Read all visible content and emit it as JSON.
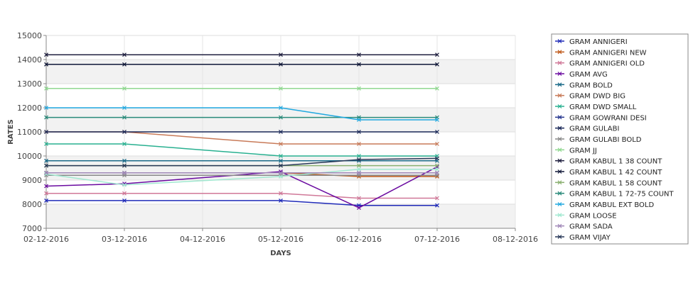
{
  "chart_data": {
    "type": "line",
    "xlabel": "DAYS",
    "ylabel": "RATES",
    "x_ticks": [
      "02-12-2016",
      "03-12-2016",
      "04-12-2016",
      "05-12-2016",
      "06-12-2016",
      "07-12-2016",
      "08-12-2016"
    ],
    "y_ticks": [
      7000,
      8000,
      9000,
      10000,
      11000,
      12000,
      13000,
      14000,
      15000
    ],
    "ylim": [
      7000,
      15000
    ],
    "grid": true,
    "legend_position": "right",
    "series": [
      {
        "name": "GRAM ANNIGERI",
        "color": "#1f2ab8",
        "x": [
          "02-12-2016",
          "03-12-2016",
          "05-12-2016",
          "06-12-2016",
          "07-12-2016"
        ],
        "values": [
          8150,
          8150,
          8150,
          7950,
          7950
        ]
      },
      {
        "name": "GRAM ANNIGERI NEW",
        "color": "#c05a1a",
        "x": [
          "02-12-2016",
          "03-12-2016",
          "05-12-2016",
          "06-12-2016",
          "07-12-2016"
        ],
        "values": [
          9300,
          9300,
          9300,
          9150,
          9150
        ]
      },
      {
        "name": "GRAM ANNIGERI OLD",
        "color": "#d07898",
        "x": [
          "02-12-2016",
          "03-12-2016",
          "05-12-2016",
          "06-12-2016",
          "07-12-2016"
        ],
        "values": [
          8450,
          8450,
          8450,
          8250,
          8250
        ]
      },
      {
        "name": "GRAM AVG",
        "color": "#6a0aa0",
        "x": [
          "02-12-2016",
          "03-12-2016",
          "05-12-2016",
          "06-12-2016",
          "07-12-2016"
        ],
        "values": [
          8750,
          8850,
          9350,
          7850,
          9550
        ]
      },
      {
        "name": "GRAM BOLD",
        "color": "#1a6a88",
        "x": [
          "02-12-2016",
          "03-12-2016",
          "05-12-2016",
          "06-12-2016",
          "07-12-2016"
        ],
        "values": [
          9800,
          9800,
          9800,
          9800,
          9800
        ]
      },
      {
        "name": "GRAM DWD BIG",
        "color": "#c87a58",
        "x": [
          "02-12-2016",
          "03-12-2016",
          "05-12-2016",
          "06-12-2016",
          "07-12-2016"
        ],
        "values": [
          11000,
          11000,
          10500,
          10500,
          10500
        ]
      },
      {
        "name": "GRAM DWD SMALL",
        "color": "#28b090",
        "x": [
          "02-12-2016",
          "03-12-2016",
          "05-12-2016",
          "06-12-2016",
          "07-12-2016"
        ],
        "values": [
          10500,
          10500,
          10000,
          10000,
          10000
        ]
      },
      {
        "name": "GRAM GOWRANI DESI",
        "color": "#283890",
        "x": [
          "02-12-2016",
          "03-12-2016",
          "05-12-2016",
          "06-12-2016",
          "07-12-2016"
        ],
        "values": [
          9300,
          9300,
          9300,
          9300,
          9300
        ]
      },
      {
        "name": "GRAM GULABI",
        "color": "#1a2858",
        "x": [
          "02-12-2016",
          "03-12-2016",
          "05-12-2016",
          "06-12-2016",
          "07-12-2016"
        ],
        "values": [
          11000,
          11000,
          11000,
          11000,
          11000
        ]
      },
      {
        "name": "GRAM GULABI BOLD",
        "color": "#888888",
        "x": [
          "02-12-2016",
          "03-12-2016",
          "05-12-2016",
          "06-12-2016",
          "07-12-2016"
        ],
        "values": [
          9200,
          9200,
          9200,
          9200,
          9200
        ]
      },
      {
        "name": "GRAM JJ",
        "color": "#90d890",
        "x": [
          "02-12-2016",
          "03-12-2016",
          "05-12-2016",
          "06-12-2016",
          "07-12-2016"
        ],
        "values": [
          12800,
          12800,
          12800,
          12800,
          12800
        ]
      },
      {
        "name": "GRAM KABUL 1 38 COUNT",
        "color": "#202040",
        "x": [
          "02-12-2016",
          "03-12-2016",
          "05-12-2016",
          "06-12-2016",
          "07-12-2016"
        ],
        "values": [
          14200,
          14200,
          14200,
          14200,
          14200
        ]
      },
      {
        "name": "GRAM KABUL 1 42 COUNT",
        "color": "#101838",
        "x": [
          "02-12-2016",
          "03-12-2016",
          "05-12-2016",
          "06-12-2016",
          "07-12-2016"
        ],
        "values": [
          13800,
          13800,
          13800,
          13800,
          13800
        ]
      },
      {
        "name": "GRAM KABUL 1 58 COUNT",
        "color": "#8ab070",
        "x": [
          "02-12-2016",
          "03-12-2016",
          "05-12-2016",
          "06-12-2016",
          "07-12-2016"
        ],
        "values": [
          9600,
          9600,
          9600,
          9600,
          9600
        ]
      },
      {
        "name": "GRAM KABUL 1 72-75 COUNT",
        "color": "#2a8a7a",
        "x": [
          "02-12-2016",
          "03-12-2016",
          "05-12-2016",
          "06-12-2016",
          "07-12-2016"
        ],
        "values": [
          11600,
          11600,
          11600,
          11600,
          11600
        ]
      },
      {
        "name": "GRAM KABUL EXT BOLD",
        "color": "#20a8e0",
        "x": [
          "02-12-2016",
          "03-12-2016",
          "05-12-2016",
          "06-12-2016",
          "07-12-2016"
        ],
        "values": [
          12000,
          12000,
          12000,
          11500,
          11500
        ]
      },
      {
        "name": "GRAM LOOSE",
        "color": "#a0e8d0",
        "x": [
          "02-12-2016",
          "03-12-2016",
          "05-12-2016",
          "06-12-2016",
          "07-12-2016"
        ],
        "values": [
          9250,
          8800,
          9150,
          9450,
          9450
        ]
      },
      {
        "name": "GRAM SADA",
        "color": "#a088b8",
        "x": [
          "02-12-2016",
          "03-12-2016",
          "05-12-2016",
          "06-12-2016",
          "07-12-2016"
        ],
        "values": [
          9300,
          9300,
          9300,
          9300,
          9300
        ]
      },
      {
        "name": "GRAM VIJAY",
        "color": "#283858",
        "x": [
          "02-12-2016",
          "03-12-2016",
          "05-12-2016",
          "06-12-2016",
          "07-12-2016"
        ],
        "values": [
          9600,
          9600,
          9600,
          9850,
          9900
        ]
      }
    ]
  }
}
